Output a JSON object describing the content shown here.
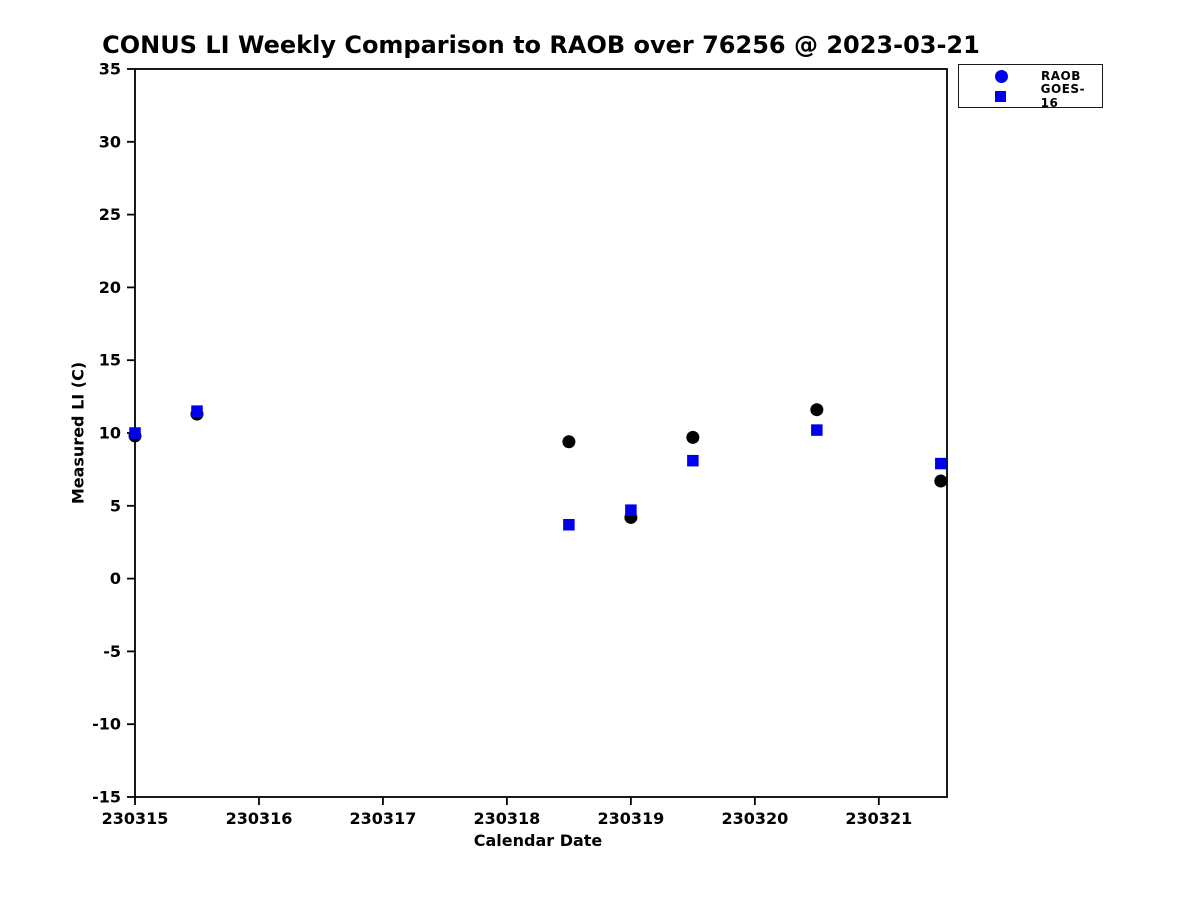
{
  "chart_data": {
    "type": "scatter",
    "title": "CONUS LI Weekly Comparison to RAOB over 76256 @ 2023-03-21",
    "xlabel": "Calendar Date",
    "ylabel": "Measured LI (C)",
    "xlim": [
      230315,
      230321.55
    ],
    "ylim": [
      -15,
      35
    ],
    "y_tick_step": 5,
    "x_ticks": [
      230315,
      230316,
      230317,
      230318,
      230319,
      230320,
      230321
    ],
    "grid": false,
    "legend_position": "top-right-outside",
    "series": [
      {
        "name": "RAOB",
        "marker": "circle",
        "color": "#000000",
        "legend_color": "#0000ee",
        "points": [
          {
            "x": 230315.0,
            "y": 9.8
          },
          {
            "x": 230315.5,
            "y": 11.3
          },
          {
            "x": 230318.5,
            "y": 9.4
          },
          {
            "x": 230319.0,
            "y": 4.2
          },
          {
            "x": 230319.5,
            "y": 9.7
          },
          {
            "x": 230320.5,
            "y": 11.6
          },
          {
            "x": 230321.5,
            "y": 6.7
          }
        ]
      },
      {
        "name": "GOES-16",
        "marker": "square",
        "color": "#0000ee",
        "legend_color": "#0000ee",
        "points": [
          {
            "x": 230315.0,
            "y": 10.0
          },
          {
            "x": 230315.5,
            "y": 11.5
          },
          {
            "x": 230318.5,
            "y": 3.7
          },
          {
            "x": 230319.0,
            "y": 4.7
          },
          {
            "x": 230319.5,
            "y": 8.1
          },
          {
            "x": 230320.5,
            "y": 10.2
          },
          {
            "x": 230321.5,
            "y": 7.9
          }
        ]
      }
    ],
    "axis_color": "#000000",
    "tick_label_color": "#000000"
  }
}
